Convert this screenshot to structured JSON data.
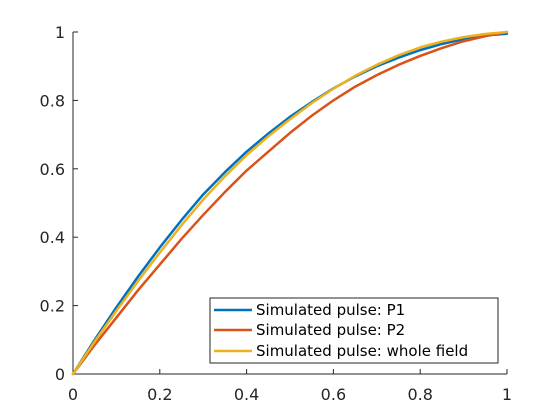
{
  "chart_data": {
    "type": "line",
    "title": "",
    "xlabel": "",
    "ylabel": "",
    "xlim": [
      0,
      1
    ],
    "ylim": [
      0,
      1
    ],
    "x_ticks": [
      0,
      0.2,
      0.4,
      0.6,
      0.8,
      1
    ],
    "x_tick_labels": [
      "0",
      "0.2",
      "0.4",
      "0.6",
      "0.8",
      "1"
    ],
    "y_ticks": [
      0,
      0.2,
      0.4,
      0.6,
      0.8,
      1
    ],
    "y_tick_labels": [
      "0",
      "0.2",
      "0.4",
      "0.6",
      "0.8",
      "1"
    ],
    "grid": false,
    "legend_position": "bottom-right",
    "x": [
      0,
      0.05,
      0.1,
      0.15,
      0.2,
      0.25,
      0.3,
      0.35,
      0.4,
      0.45,
      0.5,
      0.55,
      0.6,
      0.65,
      0.7,
      0.75,
      0.8,
      0.85,
      0.9,
      0.95,
      1.0
    ],
    "series": [
      {
        "name": "Simulated pulse: P1",
        "color": "#0072BD",
        "values": [
          0,
          0.1,
          0.195,
          0.285,
          0.37,
          0.45,
          0.525,
          0.59,
          0.65,
          0.703,
          0.752,
          0.795,
          0.835,
          0.87,
          0.9,
          0.925,
          0.947,
          0.965,
          0.979,
          0.99,
          0.995
        ]
      },
      {
        "name": "Simulated pulse: P2",
        "color": "#D95319",
        "values": [
          0,
          0.085,
          0.165,
          0.245,
          0.32,
          0.395,
          0.465,
          0.532,
          0.595,
          0.65,
          0.705,
          0.755,
          0.8,
          0.84,
          0.874,
          0.904,
          0.93,
          0.953,
          0.973,
          0.988,
          1.0
        ]
      },
      {
        "name": "Simulated pulse: whole field",
        "color": "#EDB120",
        "values": [
          0,
          0.095,
          0.185,
          0.272,
          0.355,
          0.435,
          0.51,
          0.578,
          0.64,
          0.695,
          0.745,
          0.792,
          0.834,
          0.872,
          0.904,
          0.932,
          0.955,
          0.972,
          0.985,
          0.994,
          1.0
        ]
      }
    ]
  }
}
